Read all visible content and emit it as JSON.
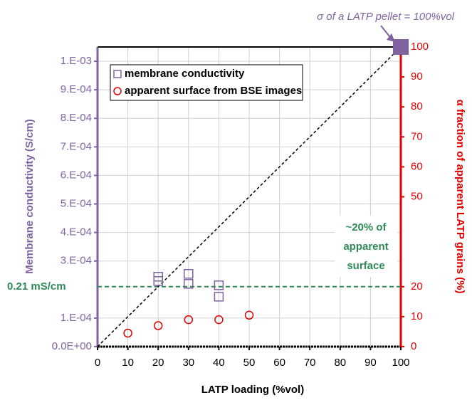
{
  "chart_data": {
    "type": "scatter",
    "x_label": "LATP loading (%vol)",
    "y_label": "Membrane conductivity  (S/cm)",
    "y2_label": "α fraction of apparent LATP grains (%)",
    "xlim": [
      0,
      100
    ],
    "xticks": [
      0,
      10,
      20,
      30,
      40,
      50,
      60,
      70,
      80,
      90,
      100
    ],
    "ylim": [
      0,
      0.00105
    ],
    "yticks": [
      {
        "value": 0,
        "label": "0.0E+00"
      },
      {
        "value": 0.0001,
        "label": "1.E-04"
      },
      {
        "value": 0.0003,
        "label": "3.E-04"
      },
      {
        "value": 0.0004,
        "label": "4.E-04"
      },
      {
        "value": 0.0005,
        "label": "5.E-04"
      },
      {
        "value": 0.0006,
        "label": "6.E-04"
      },
      {
        "value": 0.0007,
        "label": "7.E-04"
      },
      {
        "value": 0.0008,
        "label": "8.E-04"
      },
      {
        "value": 0.0009,
        "label": "9.E-04"
      },
      {
        "value": 0.001,
        "label": "1.E-03"
      }
    ],
    "y2lim": [
      0,
      100
    ],
    "y2ticks": [
      0,
      10,
      20,
      50,
      60,
      70,
      80,
      90,
      100
    ],
    "grid": true,
    "legend": "upper left",
    "series": [
      {
        "name": "membrane conductivity",
        "color": "#7f63a1",
        "marker": "square",
        "x": [
          20,
          20,
          30,
          30,
          40,
          40
        ],
        "values": [
          0.000245,
          0.00023,
          0.000255,
          0.00022,
          0.000215,
          0.000175
        ]
      },
      {
        "name": "apparent surface from BSE images",
        "color": "#e00000",
        "marker": "circle",
        "axis": "y2",
        "x": [
          10,
          20,
          30,
          40,
          50
        ],
        "values": [
          4.5,
          7,
          9,
          9,
          10.5
        ]
      }
    ],
    "diagonal": {
      "x": [
        0,
        100
      ],
      "values": [
        0,
        100
      ],
      "axis": "y2"
    },
    "pellet": {
      "text": "σ of a LATP pellet = 100%vol",
      "x": 100,
      "value": 100,
      "axis": "y2",
      "color": "#7f63a1"
    },
    "reference_line": {
      "label": "0.21 mS/cm",
      "value": 0.00021,
      "color": "#2e8b57"
    },
    "surface_note": [
      "~20% of",
      "apparent",
      "surface"
    ]
  }
}
